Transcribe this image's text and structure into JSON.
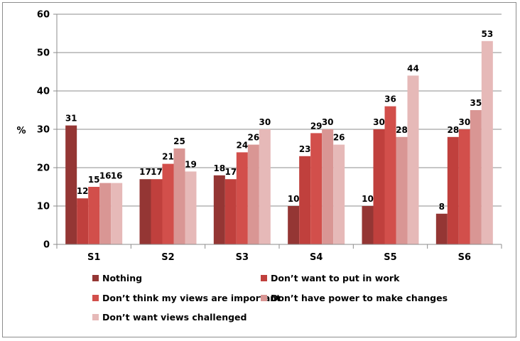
{
  "chart_data": {
    "type": "bar",
    "ylabel": "%",
    "ylim": [
      0,
      60
    ],
    "yticks": [
      "0",
      "10",
      "20",
      "30",
      "40",
      "50",
      "60"
    ],
    "grid": true,
    "legend_position": "bottom",
    "categories": [
      "S1",
      "S2",
      "S3",
      "S4",
      "S5",
      "S6"
    ],
    "series": [
      {
        "name": "Nothing",
        "color": "#943634",
        "values": [
          31,
          17,
          18,
          10,
          10,
          8
        ]
      },
      {
        "name": "Don’t want to put in work",
        "color": "#C0403D",
        "values": [
          12,
          17,
          17,
          23,
          30,
          28
        ]
      },
      {
        "name": "Don’t think my views are important",
        "color": "#D24F4B",
        "values": [
          15,
          21,
          24,
          29,
          36,
          30
        ]
      },
      {
        "name": "Don’t have power to make changes",
        "color": "#D99694",
        "values": [
          16,
          25,
          26,
          30,
          28,
          35
        ]
      },
      {
        "name": "Don’t want views challenged",
        "color": "#E6B9B8",
        "values": [
          16,
          19,
          30,
          26,
          44,
          53
        ]
      }
    ]
  }
}
